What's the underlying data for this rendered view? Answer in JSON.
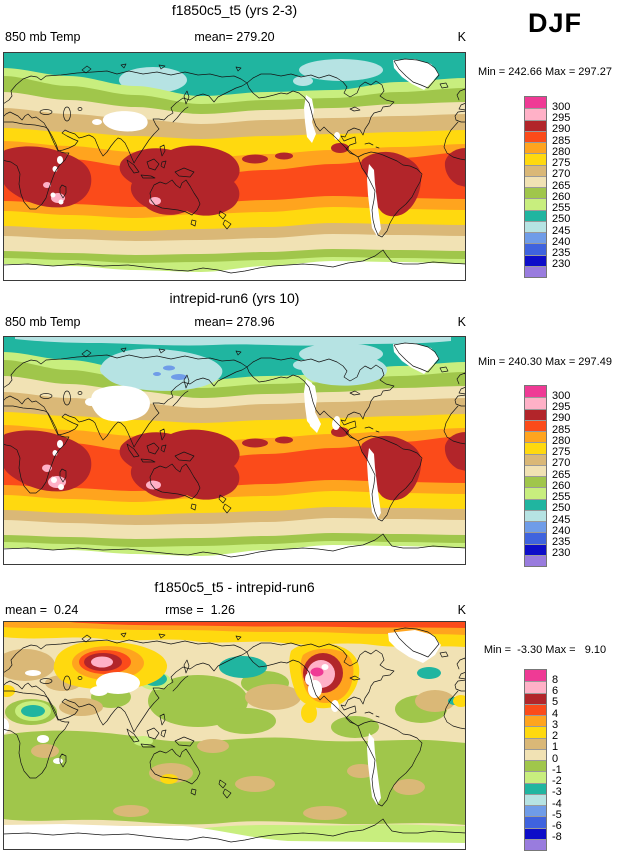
{
  "figure": {
    "season_label": "DJF"
  },
  "panels": [
    {
      "title": "f1850c5_t5 (yrs 2-3)",
      "left_label": "850 mb Temp",
      "center_label": "mean= 279.20",
      "units": "K",
      "minmax": "Min = 242.66 Max = 297.27",
      "legend_labels": [
        "300",
        "295",
        "290",
        "285",
        "280",
        "275",
        "270",
        "265",
        "260",
        "255",
        "250",
        "245",
        "240",
        "235",
        "230"
      ]
    },
    {
      "title": "intrepid-run6 (yrs 10)",
      "left_label": "850 mb Temp",
      "center_label": "mean= 278.96",
      "units": "K",
      "minmax": "Min = 240.30 Max = 297.49",
      "legend_labels": [
        "300",
        "295",
        "290",
        "285",
        "280",
        "275",
        "270",
        "265",
        "260",
        "255",
        "250",
        "245",
        "240",
        "235",
        "230"
      ]
    },
    {
      "title": "f1850c5_t5 - intrepid-run6",
      "left_label": "mean =  0.24",
      "center_label": "rmse =  1.26",
      "units": "K",
      "minmax": "Min =  -3.30 Max =   9.10",
      "legend_labels": [
        "8",
        "6",
        "5",
        "4",
        "3",
        "2",
        "1",
        "0",
        "-1",
        "-2",
        "-3",
        "-4",
        "-5",
        "-6",
        "-8"
      ]
    }
  ],
  "palette": {
    "colors_top_to_bottom": [
      "#EF3A95",
      "#FFB1C7",
      "#B2252A",
      "#FB4B1A",
      "#FFA41E",
      "#FFD90F",
      "#DAB877",
      "#F1E2B4",
      "#A0C64B",
      "#C8EE7E",
      "#20B5A0",
      "#B6E3E3",
      "#6F9CE8",
      "#3F63DE",
      "#0D0DC8",
      "#997CDE"
    ]
  },
  "chart_data": [
    {
      "type": "heatmap",
      "subtype": "filled-contour world map, equirectangular 0-360E, lat 90N-90S",
      "season": "DJF",
      "title": "f1850c5_t5 (yrs 2-3)",
      "variable": "850 mb Temp",
      "units": "K",
      "mean": 279.2,
      "min": 242.66,
      "max": 297.27,
      "contour_levels": [
        230,
        235,
        240,
        245,
        250,
        255,
        260,
        265,
        270,
        275,
        280,
        285,
        290,
        295,
        300
      ],
      "palette_low_to_high": [
        "#997CDE",
        "#0D0DC8",
        "#3F63DE",
        "#6F9CE8",
        "#B6E3E3",
        "#20B5A0",
        "#C8EE7E",
        "#A0C64B",
        "#F1E2B4",
        "#DAB877",
        "#FFD90F",
        "#FFA41E",
        "#FB4B1A",
        "#B2252A",
        "#FFB1C7",
        "#EF3A95"
      ],
      "legend_position": "right",
      "notes": "Zonal bands: 290-295K dark-red cores over tropical Africa, Maritime Continent/Australia and South America with small 295-300K pink spots; orange/yellow subtropics; tan/cream mid-latitudes; green 255-265K; teal Arctic with 245-250K pale-blue pockets over Siberia and Canadian Arctic; white = terrain-masked (Tibet, Rockies, Andes, Greenland, Antarctica)."
    },
    {
      "type": "heatmap",
      "subtype": "filled-contour world map, equirectangular 0-360E, lat 90N-90S",
      "season": "DJF",
      "title": "intrepid-run6 (yrs 10)",
      "variable": "850 mb Temp",
      "units": "K",
      "mean": 278.96,
      "min": 240.3,
      "max": 297.49,
      "contour_levels": [
        230,
        235,
        240,
        245,
        250,
        255,
        260,
        265,
        270,
        275,
        280,
        285,
        290,
        295,
        300
      ],
      "palette_low_to_high": [
        "#997CDE",
        "#0D0DC8",
        "#3F63DE",
        "#6F9CE8",
        "#B6E3E3",
        "#20B5A0",
        "#C8EE7E",
        "#A0C64B",
        "#F1E2B4",
        "#DAB877",
        "#FFD90F",
        "#FFA41E",
        "#FB4B1A",
        "#B2252A",
        "#FFB1C7",
        "#EF3A95"
      ],
      "legend_position": "right",
      "notes": "Same banded pattern as case 1 but colder Arctic: pale-blue 245-250K cap strip along the top edge, larger pale-blue pools over Siberia (with small 240-245K cornflower streaks) and the Canadian Arctic; larger terrain-masked white areas."
    },
    {
      "type": "heatmap",
      "subtype": "difference map (case1 - case2), equirectangular 0-360E",
      "season": "DJF",
      "title": "f1850c5_t5 - intrepid-run6",
      "variable": "850 mb Temp difference",
      "units": "K",
      "mean": 0.24,
      "rmse": 1.26,
      "min": -3.3,
      "max": 9.1,
      "contour_levels": [
        -8,
        -6,
        -5,
        -4,
        -3,
        -2,
        -1,
        0,
        1,
        2,
        3,
        4,
        5,
        6,
        8
      ],
      "palette_low_to_high": [
        "#997CDE",
        "#0D0DC8",
        "#3F63DE",
        "#6F9CE8",
        "#B6E3E3",
        "#20B5A0",
        "#C8EE7E",
        "#A0C64B",
        "#F1E2B4",
        "#DAB877",
        "#FFD90F",
        "#FFA41E",
        "#FB4B1A",
        "#B2252A",
        "#FFB1C7",
        "#EF3A95"
      ],
      "legend_position": "right",
      "notes": "Mostly -1..+1 K (olive/cream mottling). Warm +3..+9 K anomalies (yellow-orange-red with pink/magenta cores) over central Siberia, western North America and along the Arctic rim; cool -2..-3 K teal patches over the Bering Sea, central Russia, eastern Europe and the N Atlantic; white terrain mask unchanged."
    }
  ]
}
